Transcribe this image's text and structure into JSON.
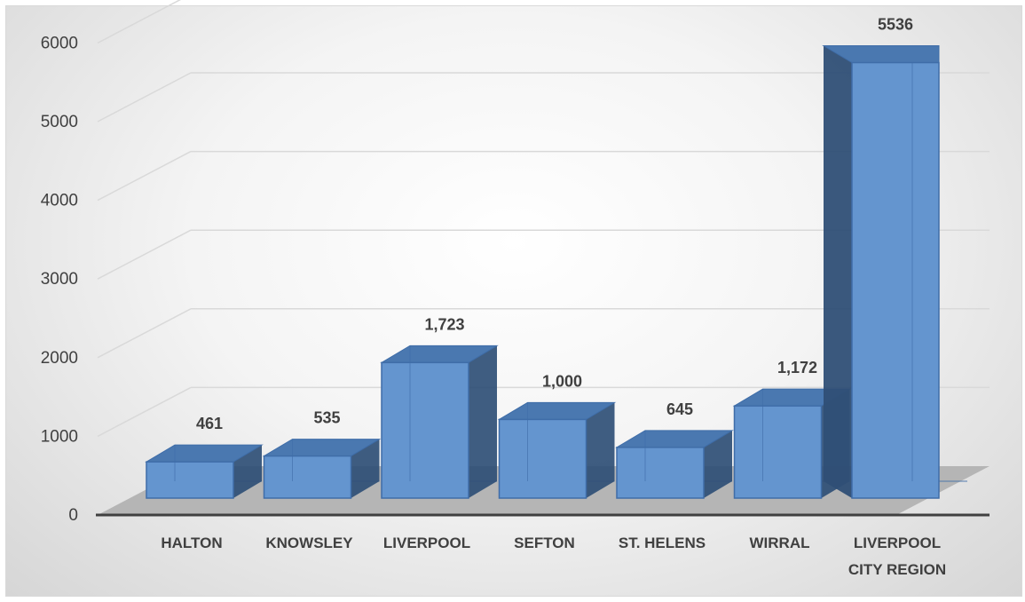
{
  "chart_data": {
    "type": "bar",
    "style": "3d-column",
    "categories": [
      "HALTON",
      "KNOWSLEY",
      "LIVERPOOL",
      "SEFTON",
      "ST. HELENS",
      "WIRRAL",
      "LIVERPOOL CITY REGION"
    ],
    "category_lines": [
      [
        "HALTON"
      ],
      [
        "KNOWSLEY"
      ],
      [
        "LIVERPOOL"
      ],
      [
        "SEFTON"
      ],
      [
        "ST. HELENS"
      ],
      [
        "WIRRAL"
      ],
      [
        "LIVERPOOL",
        "CITY REGION"
      ]
    ],
    "values": [
      461,
      535,
      1723,
      1000,
      645,
      1172,
      5536
    ],
    "data_labels": [
      "461",
      "535",
      "1,723",
      "1,000",
      "645",
      "1,172",
      "5536"
    ],
    "ylim": [
      0,
      6000
    ],
    "yticks": [
      "0",
      "1000",
      "2000",
      "3000",
      "4000",
      "5000",
      "6000"
    ],
    "grid": true,
    "legend": "none",
    "colors": {
      "front": "#6495cf",
      "top": "#4a78b0",
      "side": "#2f4f76",
      "edge": "#3f6da8",
      "floor": "#b5b5b5",
      "gridline": "#d9d9d9"
    }
  }
}
